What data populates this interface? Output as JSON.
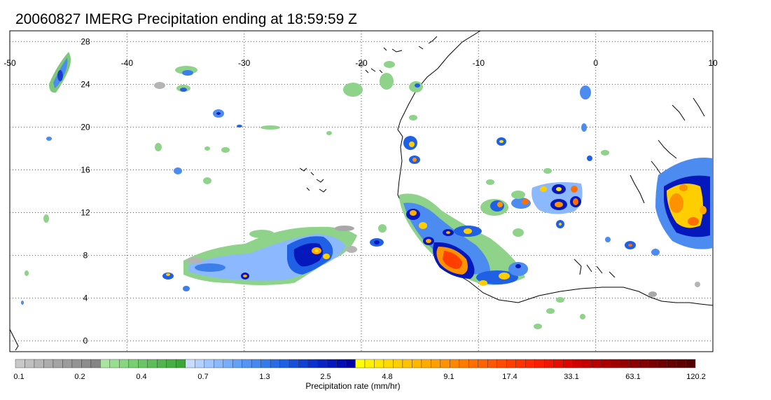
{
  "title": "20060827 IMERG Precipitation ending at 18:59:59 Z",
  "map": {
    "lon_range": [
      -50,
      10
    ],
    "lat_range": [
      -1,
      29
    ],
    "lon_ticks": [
      "-50",
      "-40",
      "-30",
      "-20",
      "-10",
      "0",
      "10"
    ],
    "lat_ticks": [
      "28",
      "24",
      "20",
      "16",
      "12",
      "8",
      "4",
      "0"
    ],
    "grid": "dotted",
    "region": "West Africa and tropical Atlantic"
  },
  "legend": {
    "title": "Precipitation rate (mm/hr)",
    "labels": [
      "0.1",
      "0.2",
      "0.4",
      "0.7",
      "1.3",
      "2.5",
      "4.8",
      "9.1",
      "17.4",
      "33.1",
      "63.1",
      "120.2"
    ],
    "colors": [
      "#c8c8c8",
      "#c0c0c0",
      "#b6b6b6",
      "#acacac",
      "#a4a4a4",
      "#9c9c9c",
      "#949494",
      "#8c8c8c",
      "#848484",
      "#a8e6a0",
      "#98de90",
      "#88d680",
      "#78ce70",
      "#6ac664",
      "#5cbe58",
      "#50b64c",
      "#46ae42",
      "#3ca638",
      "#c8dcff",
      "#b4d0ff",
      "#a0c4ff",
      "#8cb8ff",
      "#78acfc",
      "#64a0f8",
      "#5494f4",
      "#4488f0",
      "#347cec",
      "#2a6ce8",
      "#2060e4",
      "#1850dc",
      "#1040d4",
      "#0c30cc",
      "#0824c4",
      "#0418bc",
      "#000cb4",
      "#0000a8",
      "#ffff00",
      "#fff200",
      "#ffe600",
      "#ffda00",
      "#ffce00",
      "#ffc200",
      "#ffb600",
      "#ffaa00",
      "#ff9e00",
      "#ff9200",
      "#ff8600",
      "#ff7a00",
      "#ff6e00",
      "#ff6200",
      "#ff5600",
      "#ff4a00",
      "#ff3e00",
      "#ff3200",
      "#ff2600",
      "#f81e00",
      "#f01600",
      "#e60e00",
      "#dc0600",
      "#d00000",
      "#c40000",
      "#b80000",
      "#ac0000",
      "#a00000",
      "#960000",
      "#8c0000",
      "#820000",
      "#780000",
      "#6e0000",
      "#640000",
      "#5c0000",
      "#540000"
    ]
  }
}
